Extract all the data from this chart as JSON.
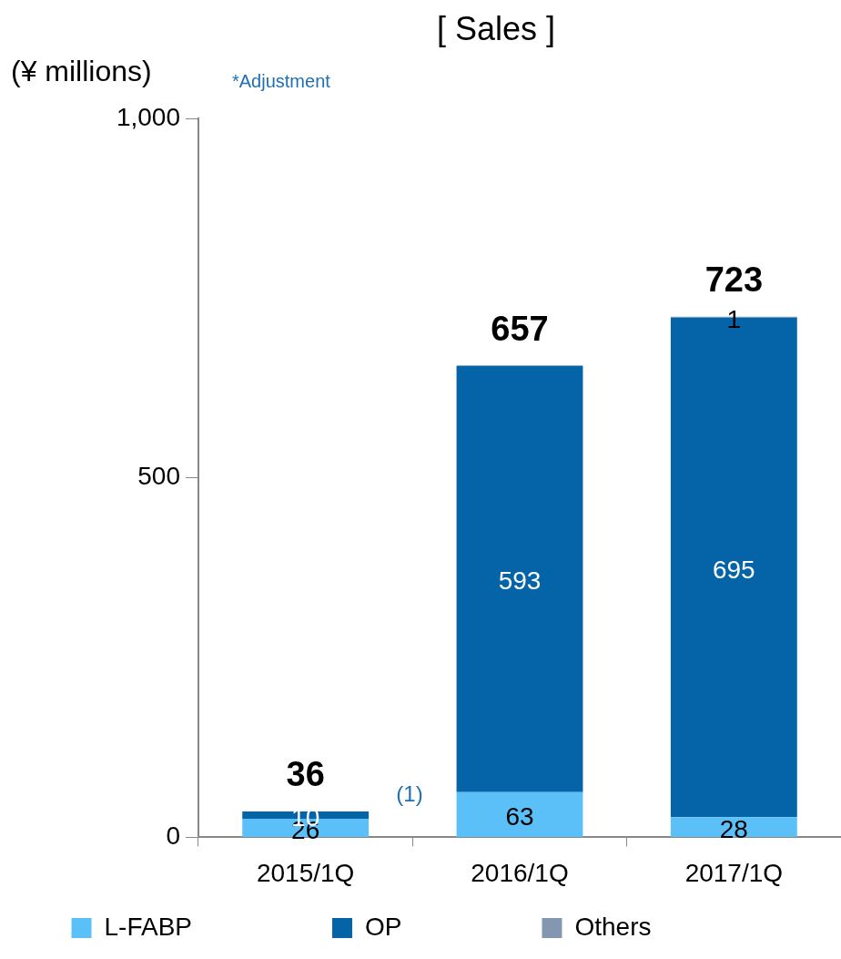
{
  "chart_data": {
    "type": "bar",
    "title": "[ Sales ]",
    "ylabel": "(¥ millions)",
    "categories": [
      "2015/1Q",
      "2016/1Q",
      "2017/1Q"
    ],
    "stacked": true,
    "series": [
      {
        "name": "L-FABP",
        "color": "#5bc0f8",
        "values": [
          26,
          63,
          28
        ]
      },
      {
        "name": "OP",
        "color": "#0563a8",
        "values": [
          10,
          593,
          695
        ]
      },
      {
        "name": "Others",
        "color": "#8497b0",
        "values": [
          null,
          null,
          1
        ]
      }
    ],
    "ylim": [
      0,
      1000
    ],
    "yticks": [
      0,
      500,
      {
        "value": 1000,
        "label": "1,000"
      }
    ],
    "grid": false,
    "legend": "bottom",
    "data_labels": true,
    "totals": [
      "36",
      "657",
      "723"
    ],
    "annotations": [
      "*Adjustment",
      "(1)"
    ]
  }
}
